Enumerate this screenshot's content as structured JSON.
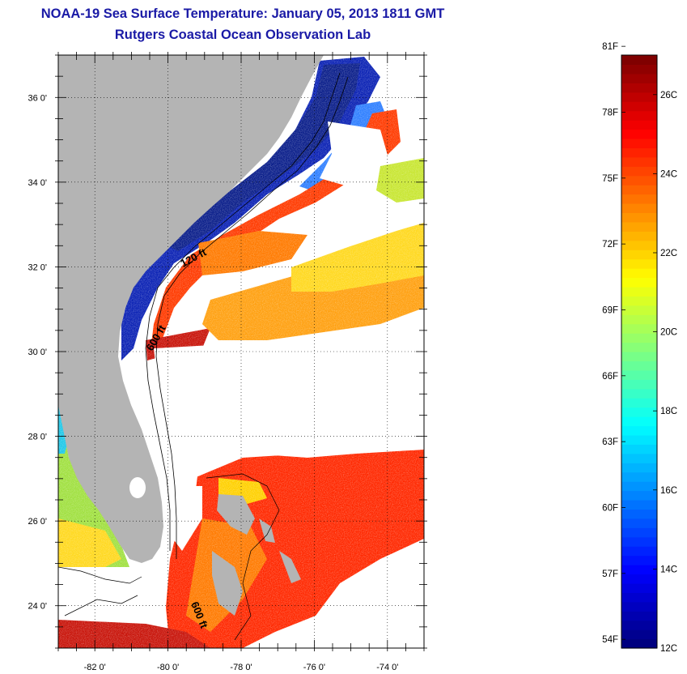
{
  "title": "NOAA-19 Sea Surface Temperature:  January 05, 2013 1811 GMT",
  "subtitle": "Rutgers Coastal Ocean Observation Lab",
  "map": {
    "lat_labels": [
      "36 0'",
      "34 0'",
      "32 0'",
      "30 0'",
      "28 0'",
      "26 0'",
      "24 0'"
    ],
    "lat_values": [
      36,
      34,
      32,
      30,
      28,
      26,
      24
    ],
    "lon_labels": [
      "-82 0'",
      "-80 0'",
      "-78 0'",
      "-76 0'",
      "-74 0'"
    ],
    "lon_values": [
      -82,
      -80,
      -78,
      -76,
      -74
    ],
    "lat_range": [
      23,
      37
    ],
    "lon_range": [
      -83,
      -73
    ],
    "contour_labels": [
      "120 ft",
      "600 ft",
      "600 ft"
    ],
    "colors": {
      "land": "#b4b4b4",
      "cloud": "#ffffff",
      "cold": "#0a1ea0",
      "warm": "#ff3200",
      "hot": "#c00000"
    }
  },
  "colorbar": {
    "f_labels": [
      "81F",
      "78F",
      "75F",
      "72F",
      "69F",
      "66F",
      "63F",
      "60F",
      "57F",
      "54F"
    ],
    "c_labels": [
      "26C",
      "24C",
      "22C",
      "20C",
      "18C",
      "16C",
      "14C",
      "12C"
    ],
    "range_c": [
      12,
      27
    ],
    "colormap": "jet"
  }
}
